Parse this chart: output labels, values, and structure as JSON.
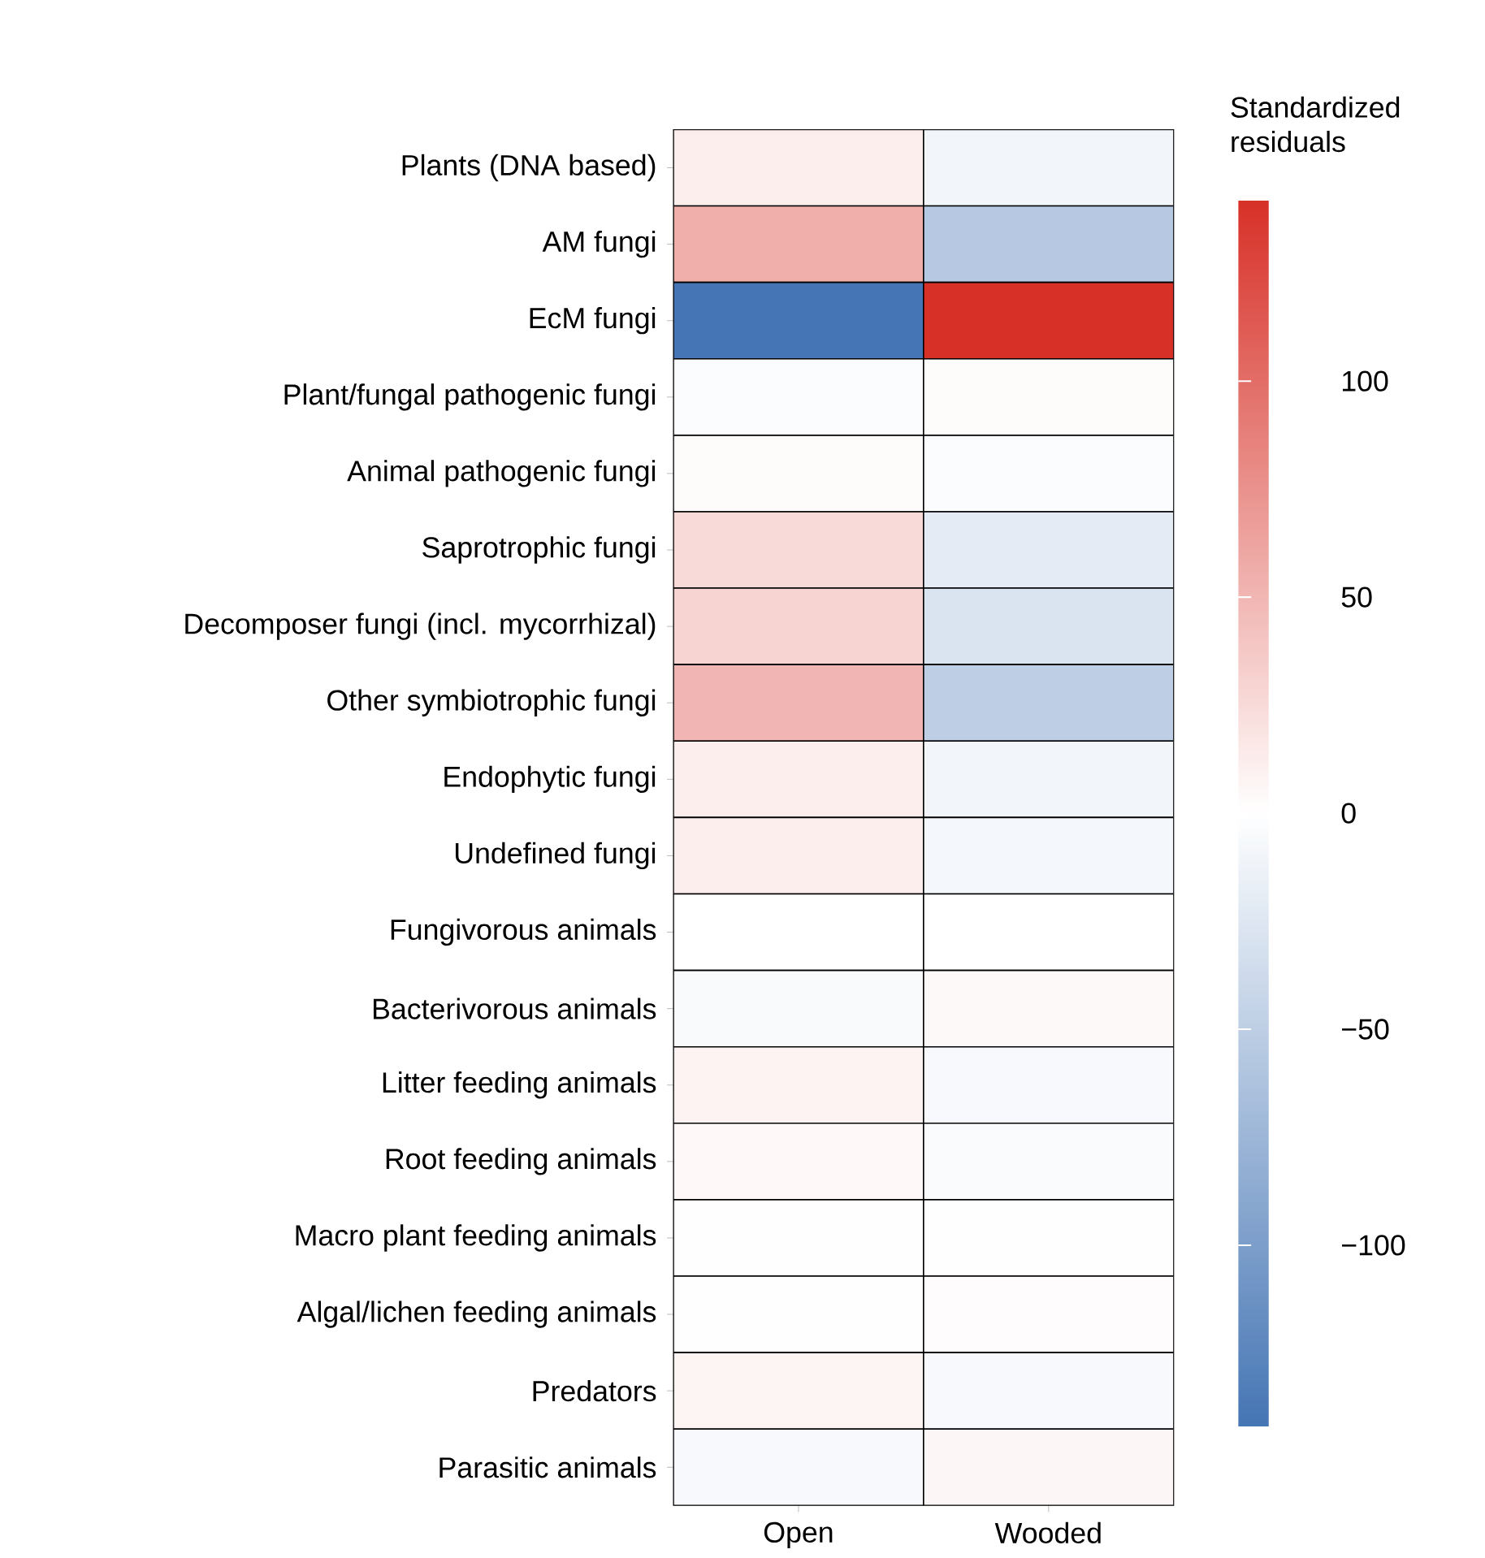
{
  "chart_data": {
    "type": "heatmap",
    "categories": [
      "Open",
      "Wooded"
    ],
    "y_categories": [
      "Plants (DNA based)",
      "AM fungi",
      "EcM fungi",
      "Plant/fungal pathogenic fungi",
      "Animal pathogenic fungi",
      "Saprotrophic fungi",
      "Decomposer fungi (incl. mycorrhizal)",
      "Other symbiotrophic fungi",
      "Endophytic fungi",
      "Undefined fungi",
      "Fungivorous animals",
      "Bacterivorous animals",
      "Litter feeding animals",
      "Root feeding animals",
      "Macro plant feeding animals",
      "Algal/lichen feeding animals",
      "Predators",
      "Parasitic animals"
    ],
    "cells": [
      [
        12,
        -10
      ],
      [
        55,
        -55
      ],
      [
        -142,
        142
      ],
      [
        -3,
        3
      ],
      [
        3,
        -3
      ],
      [
        25,
        -20
      ],
      [
        30,
        -28
      ],
      [
        50,
        -50
      ],
      [
        12,
        -10
      ],
      [
        12,
        -8
      ],
      [
        0,
        0
      ],
      [
        -5,
        4
      ],
      [
        8,
        -6
      ],
      [
        5,
        -4
      ],
      [
        1,
        -1
      ],
      [
        -1,
        2
      ],
      [
        7,
        -6
      ],
      [
        -6,
        6
      ]
    ],
    "clim": [
      -142,
      142
    ],
    "cticks": [
      {
        "value": -100,
        "label": "−100"
      },
      {
        "value": -50,
        "label": "−50"
      },
      0,
      50,
      100
    ],
    "clabel": "Standardized residuals"
  }
}
